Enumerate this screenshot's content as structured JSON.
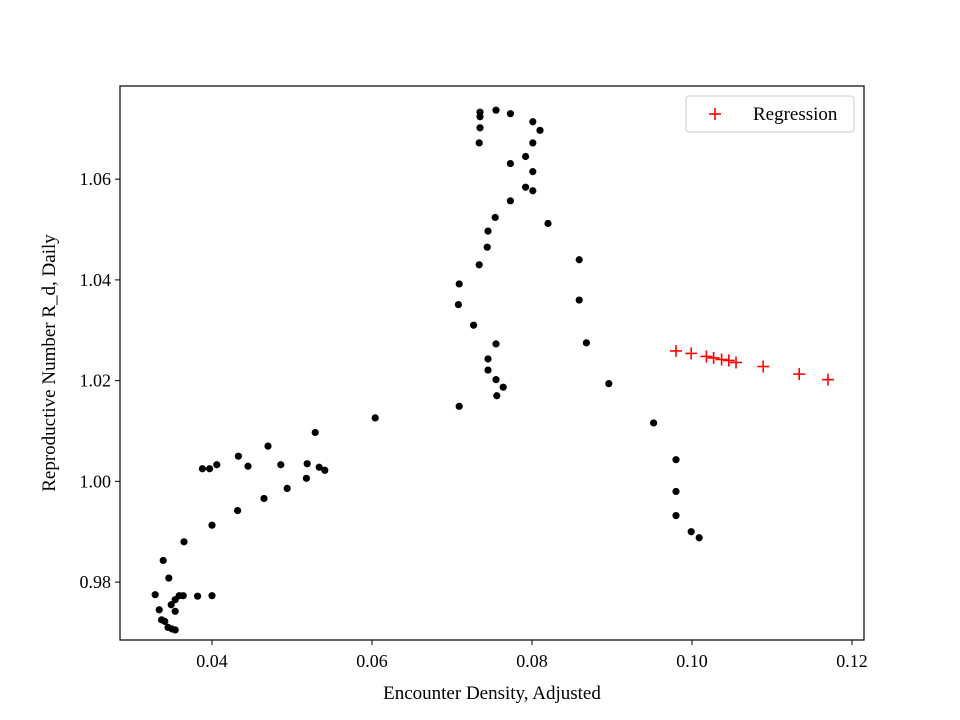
{
  "chart_data": {
    "type": "scatter",
    "title": "",
    "xlabel": "Encounter Density, Adjusted",
    "ylabel": "Reproductive Number R_d, Daily",
    "xlim": [
      0.0285,
      0.1215
    ],
    "ylim": [
      0.9685,
      1.0785
    ],
    "xticks": [
      0.04,
      0.06,
      0.08,
      0.1,
      0.12
    ],
    "xtick_labels": [
      "0.04",
      "0.06",
      "0.08",
      "0.10",
      "0.12"
    ],
    "yticks": [
      0.98,
      1.0,
      1.02,
      1.04,
      1.06
    ],
    "ytick_labels": [
      "0.98",
      "1.00",
      "1.02",
      "1.04",
      "1.06"
    ],
    "grid": false,
    "legend": {
      "placement": "top-right",
      "entries": [
        "Regression"
      ]
    },
    "colors": {
      "observed": "#000000",
      "regression": "#ff0000"
    },
    "series": [
      {
        "marker": "dot",
        "points": [
          [
            0.0329,
            0.9775
          ],
          [
            0.0334,
            0.9745
          ],
          [
            0.0337,
            0.9725
          ],
          [
            0.0341,
            0.9722
          ],
          [
            0.0345,
            0.971
          ],
          [
            0.035,
            0.9707
          ],
          [
            0.0354,
            0.9705
          ],
          [
            0.0349,
            0.9755
          ],
          [
            0.0354,
            0.9742
          ],
          [
            0.0354,
            0.9765
          ],
          [
            0.0359,
            0.9773
          ],
          [
            0.0364,
            0.9773
          ],
          [
            0.0346,
            0.9808
          ],
          [
            0.0339,
            0.9843
          ],
          [
            0.0365,
            0.988
          ],
          [
            0.0382,
            0.9772
          ],
          [
            0.04,
            0.9773
          ],
          [
            0.0388,
            1.0025
          ],
          [
            0.0397,
            1.0025
          ],
          [
            0.0406,
            1.0033
          ],
          [
            0.04,
            0.9913
          ],
          [
            0.0433,
            1.005
          ],
          [
            0.0445,
            1.003
          ],
          [
            0.0432,
            0.9942
          ],
          [
            0.0465,
            0.9966
          ],
          [
            0.047,
            1.007
          ],
          [
            0.0486,
            1.0033
          ],
          [
            0.0494,
            0.9986
          ],
          [
            0.0518,
            1.0006
          ],
          [
            0.0519,
            1.0035
          ],
          [
            0.0529,
            1.0097
          ],
          [
            0.0534,
            1.0028
          ],
          [
            0.0541,
            1.0022
          ],
          [
            0.0604,
            1.0126
          ],
          [
            0.0709,
            1.0149
          ],
          [
            0.0708,
            1.0351
          ],
          [
            0.0709,
            1.0392
          ],
          [
            0.0727,
            1.031
          ],
          [
            0.0734,
            1.043
          ],
          [
            0.0744,
            1.0465
          ],
          [
            0.0745,
            1.0497
          ],
          [
            0.0754,
            1.0524
          ],
          [
            0.0745,
            1.0243
          ],
          [
            0.0745,
            1.0221
          ],
          [
            0.0755,
            1.0273
          ],
          [
            0.0755,
            1.0202
          ],
          [
            0.0756,
            1.017
          ],
          [
            0.0764,
            1.0187
          ],
          [
            0.0734,
            1.0672
          ],
          [
            0.0735,
            1.0702
          ],
          [
            0.0735,
            1.0724
          ],
          [
            0.0735,
            1.0733
          ],
          [
            0.0755,
            1.0737
          ],
          [
            0.0773,
            1.073
          ],
          [
            0.0773,
            1.0631
          ],
          [
            0.0773,
            1.0557
          ],
          [
            0.0792,
            1.0645
          ],
          [
            0.0792,
            1.0584
          ],
          [
            0.0801,
            1.0714
          ],
          [
            0.0801,
            1.0672
          ],
          [
            0.0801,
            1.0615
          ],
          [
            0.0801,
            1.0577
          ],
          [
            0.081,
            1.0697
          ],
          [
            0.082,
            1.0512
          ],
          [
            0.0859,
            1.044
          ],
          [
            0.0859,
            1.036
          ],
          [
            0.0868,
            1.0275
          ],
          [
            0.0896,
            1.0194
          ],
          [
            0.0952,
            1.0116
          ],
          [
            0.098,
            1.0043
          ],
          [
            0.098,
            0.998
          ],
          [
            0.098,
            0.9932
          ],
          [
            0.0999,
            0.99
          ],
          [
            0.1009,
            0.9888
          ]
        ]
      },
      {
        "name": "Regression",
        "marker": "plus",
        "points": [
          [
            0.098,
            1.0259
          ],
          [
            0.0999,
            1.0254
          ],
          [
            0.1018,
            1.0248
          ],
          [
            0.1027,
            1.0245
          ],
          [
            0.1037,
            1.0242
          ],
          [
            0.1046,
            1.024
          ],
          [
            0.1055,
            1.0236
          ],
          [
            0.1089,
            1.0228
          ],
          [
            0.1134,
            1.0213
          ],
          [
            0.117,
            1.0202
          ]
        ]
      }
    ]
  }
}
